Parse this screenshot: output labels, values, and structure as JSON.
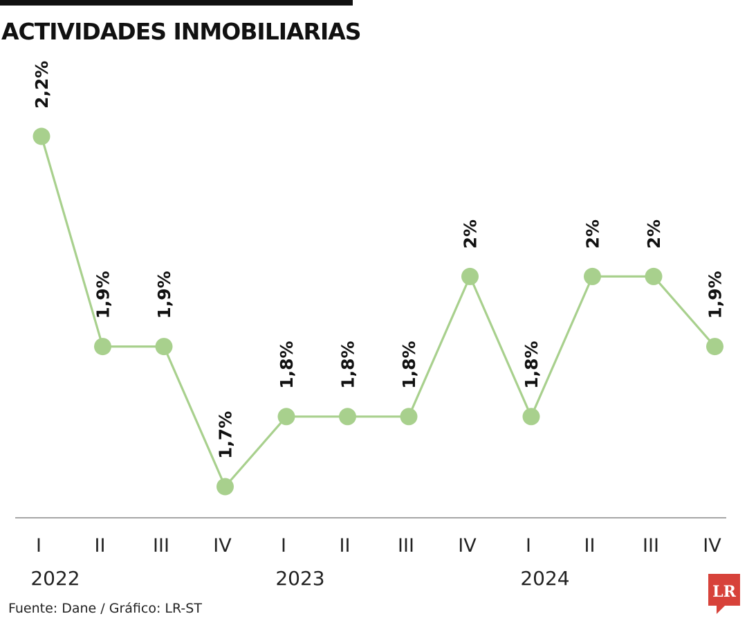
{
  "title": "ACTIVIDADES INMOBILIARIAS",
  "source": "Fuente: Dane / Gráfico: LR-ST",
  "logo_text": "LR",
  "colors": {
    "line": "#a8d08d",
    "marker": "#a8d08d",
    "axis": "#888888",
    "text": "#111111",
    "logo": "#d7423a"
  },
  "chart_data": {
    "type": "line",
    "title": "ACTIVIDADES INMOBILIARIAS",
    "xlabel": "",
    "ylabel": "",
    "categories": [
      "I",
      "II",
      "III",
      "IV",
      "I",
      "II",
      "III",
      "IV",
      "I",
      "II",
      "III",
      "IV"
    ],
    "year_labels": [
      {
        "label": "2022",
        "quarter_index": 0
      },
      {
        "label": "2023",
        "quarter_index": 4
      },
      {
        "label": "2024",
        "quarter_index": 8
      }
    ],
    "values": [
      2.2,
      1.9,
      1.9,
      1.7,
      1.8,
      1.8,
      1.8,
      2.0,
      1.8,
      2.0,
      2.0,
      1.9
    ],
    "data_labels": [
      "2,2%",
      "1,9%",
      "1,9%",
      "1,7%",
      "1,8%",
      "1,8%",
      "1,8%",
      "2%",
      "1,8%",
      "2%",
      "2%",
      "1,9%"
    ],
    "ylim": [
      1.6,
      2.25
    ],
    "grid": false,
    "legend": "none"
  }
}
